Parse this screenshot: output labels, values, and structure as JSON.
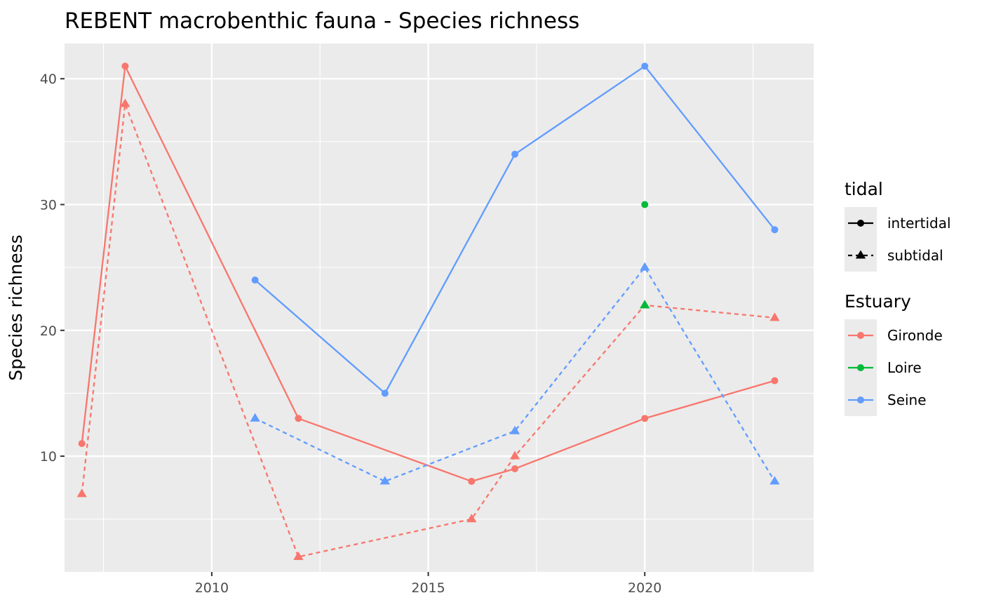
{
  "chart_data": {
    "type": "line",
    "title": "REBENT macrobenthic fauna - Species richness",
    "xlabel": "",
    "ylabel": "Species richness",
    "xlim": [
      2006.6,
      2023.9
    ],
    "ylim": [
      0.8,
      42.8
    ],
    "x_ticks": [
      2010,
      2015,
      2020
    ],
    "y_ticks": [
      10,
      20,
      30,
      40
    ],
    "grid": true,
    "legend_position": "right",
    "legends": [
      {
        "title": "tidal",
        "items": [
          {
            "label": "intertidal",
            "linetype": "solid",
            "shape": "circle"
          },
          {
            "label": "subtidal",
            "linetype": "dashed",
            "shape": "triangle"
          }
        ]
      },
      {
        "title": "Estuary",
        "items": [
          {
            "label": "Gironde",
            "color": "#F8766D"
          },
          {
            "label": "Loire",
            "color": "#00BA38"
          },
          {
            "label": "Seine",
            "color": "#619CFF"
          }
        ]
      }
    ],
    "series": [
      {
        "estuary": "Gironde",
        "tidal": "intertidal",
        "color": "#F8766D",
        "linetype": "solid",
        "shape": "circle",
        "points": [
          [
            2007,
            11
          ],
          [
            2008,
            41
          ],
          [
            2012,
            13
          ],
          [
            2016,
            8
          ],
          [
            2017,
            9
          ],
          [
            2020,
            13
          ],
          [
            2023,
            16
          ]
        ]
      },
      {
        "estuary": "Gironde",
        "tidal": "subtidal",
        "color": "#F8766D",
        "linetype": "dashed",
        "shape": "triangle",
        "points": [
          [
            2007,
            7
          ],
          [
            2008,
            38
          ],
          [
            2012,
            2
          ],
          [
            2016,
            5
          ],
          [
            2017,
            10
          ],
          [
            2020,
            22
          ],
          [
            2023,
            21
          ]
        ]
      },
      {
        "estuary": "Seine",
        "tidal": "intertidal",
        "color": "#619CFF",
        "linetype": "solid",
        "shape": "circle",
        "points": [
          [
            2011,
            24
          ],
          [
            2014,
            15
          ],
          [
            2017,
            34
          ],
          [
            2020,
            41
          ],
          [
            2023,
            28
          ]
        ]
      },
      {
        "estuary": "Seine",
        "tidal": "subtidal",
        "color": "#619CFF",
        "linetype": "dashed",
        "shape": "triangle",
        "points": [
          [
            2011,
            13
          ],
          [
            2014,
            8
          ],
          [
            2017,
            12
          ],
          [
            2020,
            25
          ],
          [
            2023,
            8
          ]
        ]
      },
      {
        "estuary": "Loire",
        "tidal": "intertidal",
        "color": "#00BA38",
        "linetype": "solid",
        "shape": "circle",
        "points": [
          [
            2020,
            30
          ]
        ]
      },
      {
        "estuary": "Loire",
        "tidal": "subtidal",
        "color": "#00BA38",
        "linetype": "dashed",
        "shape": "triangle",
        "points": [
          [
            2020,
            22
          ]
        ]
      }
    ]
  }
}
